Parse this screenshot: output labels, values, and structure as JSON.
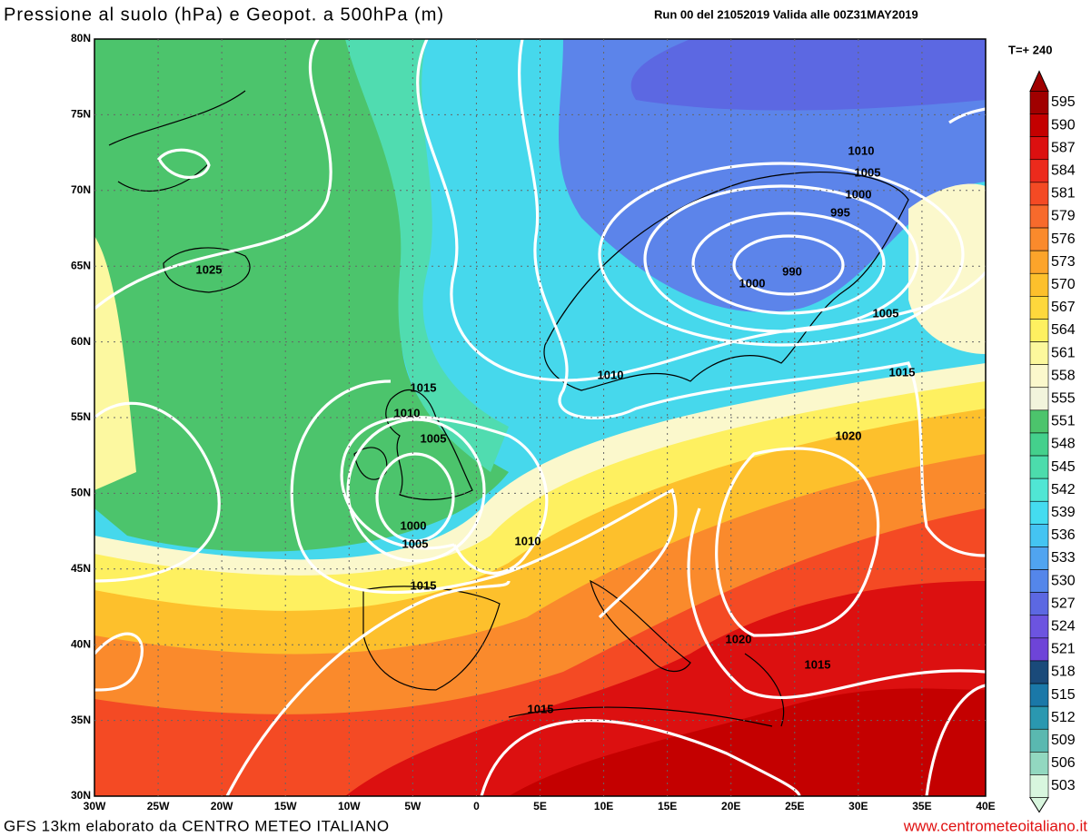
{
  "header": {
    "title": "Pressione al suolo (hPa) e Geopot. a 500hPa (m)",
    "run": "Run 00 del 21052019 Valida alle 00Z31MAY2019",
    "step": "T=+ 240"
  },
  "map": {
    "lat_labels": [
      "80N",
      "75N",
      "70N",
      "65N",
      "60N",
      "55N",
      "50N",
      "45N",
      "40N",
      "35N",
      "30N"
    ],
    "lon_labels": [
      "30W",
      "25W",
      "20W",
      "15W",
      "10W",
      "5W",
      "0",
      "5E",
      "10E",
      "15E",
      "20E",
      "25E",
      "30E",
      "35E",
      "40E"
    ],
    "isobar_labels": [
      "1010",
      "1005",
      "1000",
      "995",
      "990",
      "1000",
      "1005",
      "1015",
      "1010",
      "1020",
      "1020",
      "1015",
      "1015",
      "1015",
      "1010",
      "1005",
      "1000",
      "1005",
      "1010",
      "1015",
      "1025"
    ],
    "colorbar": {
      "levels": [
        595,
        590,
        587,
        584,
        581,
        579,
        576,
        573,
        570,
        567,
        564,
        561,
        558,
        555,
        551,
        548,
        545,
        542,
        539,
        536,
        533,
        530,
        527,
        524,
        521,
        518,
        515,
        512,
        509,
        506,
        503
      ],
      "colors": [
        "#a00000",
        "#c40000",
        "#dc1010",
        "#ec2a1c",
        "#f44a24",
        "#f76a2c",
        "#fa8a2c",
        "#fca42a",
        "#fdc02c",
        "#fed83c",
        "#fef060",
        "#fcf89c",
        "#fbf8cc",
        "#f2f4dc",
        "#4cc46c",
        "#44d08c",
        "#4cdcac",
        "#50e6d4",
        "#44dcf0",
        "#44c4f2",
        "#50a4f0",
        "#5486ea",
        "#5c68e2",
        "#6c54e0",
        "#6e44d8",
        "#1a4a7a",
        "#1a78a8",
        "#2a98b0",
        "#5ab8b0",
        "#92d8c0",
        "#d8f6de"
      ]
    }
  },
  "footer": {
    "credit": "GFS 13km elaborato da CENTRO METEO ITALIANO",
    "url": "www.centrometeoitaliano.it"
  }
}
